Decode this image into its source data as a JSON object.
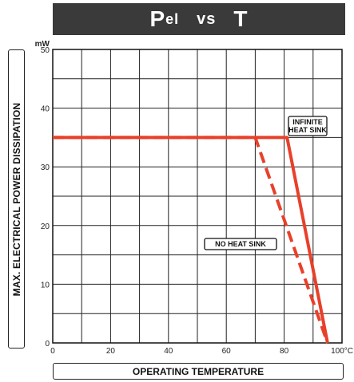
{
  "chart_data": {
    "type": "line",
    "title_main": "P",
    "title_sub": "el",
    "title_vs": "vs",
    "title_end": "T",
    "ylabel": "MAX. ELECTRICAL POWER DISSIPATION",
    "xlabel": "OPERATING TEMPERATURE",
    "y_unit": "mW",
    "x_unit": "100°C",
    "xlim": [
      0,
      100
    ],
    "ylim": [
      0,
      50
    ],
    "x_ticks": [
      0,
      20,
      40,
      60,
      80
    ],
    "x_tick_labels": [
      "0",
      "20",
      "40",
      "60",
      "80"
    ],
    "y_ticks": [
      0,
      10,
      20,
      30,
      40,
      50
    ],
    "y_tick_labels": [
      "0",
      "10",
      "20",
      "30",
      "40",
      "50"
    ],
    "grid": true,
    "line_color": "#e8402a",
    "series": [
      {
        "name": "INFINITE HEAT SINK",
        "style": "solid",
        "x": [
          0,
          81,
          95
        ],
        "y": [
          35,
          35,
          0
        ]
      },
      {
        "name": "NO HEAT SINK",
        "style": "dashed",
        "x": [
          0,
          70,
          95
        ],
        "y": [
          35,
          35,
          0
        ]
      }
    ],
    "annotations": [
      {
        "lines": [
          "INFINITE",
          "HEAT SINK"
        ]
      },
      {
        "lines": [
          "NO HEAT SINK"
        ]
      }
    ]
  }
}
